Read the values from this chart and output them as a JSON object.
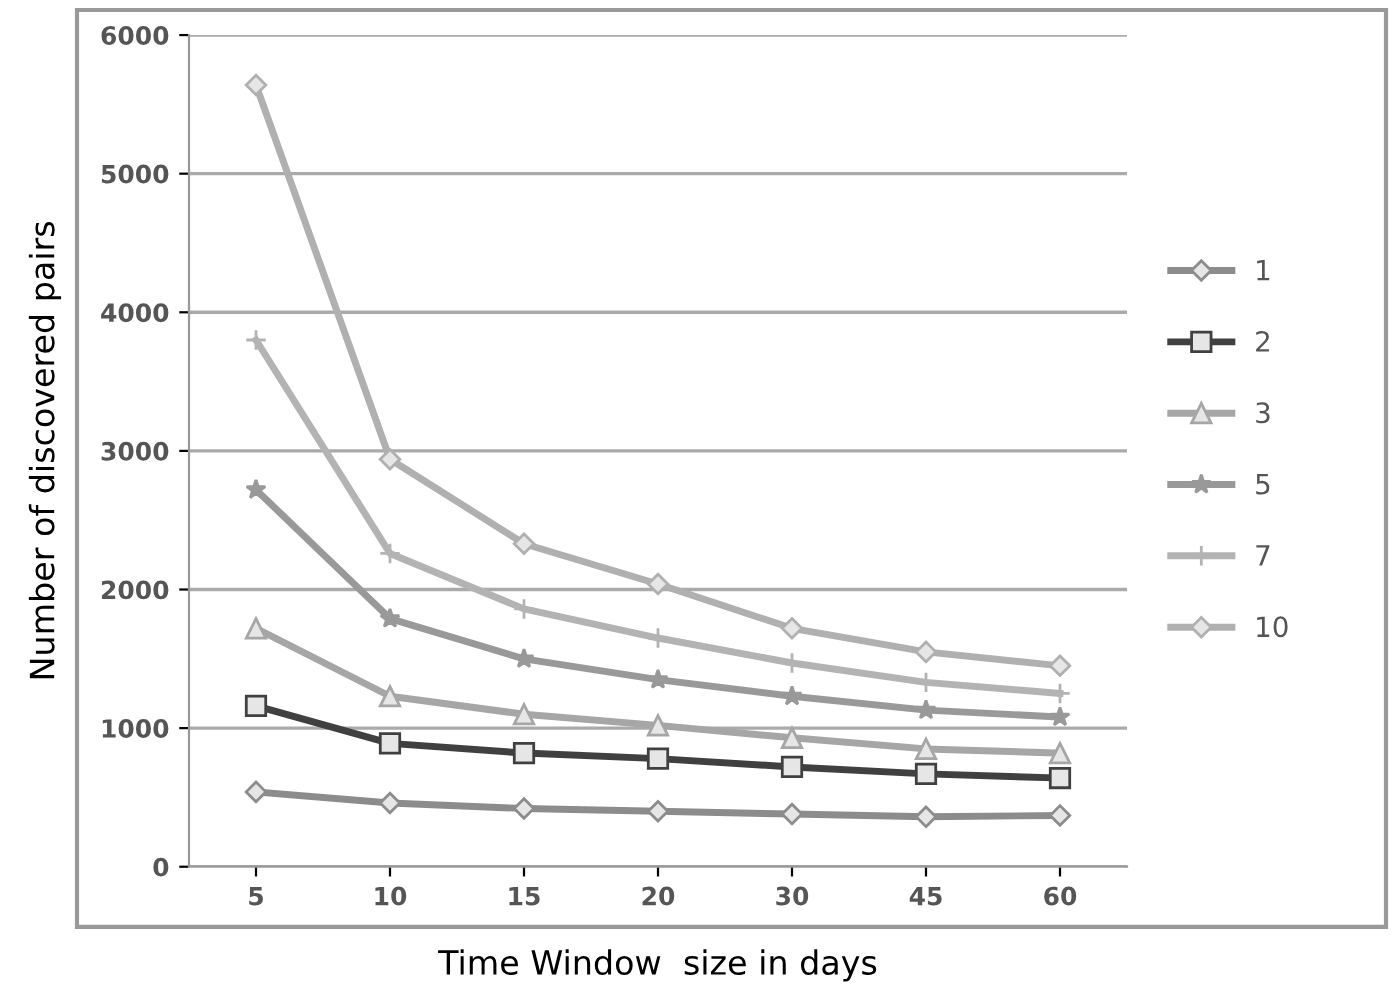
{
  "chart_data": {
    "type": "line",
    "xlabel": "Time Window  size in days",
    "ylabel": "Number of discovered pairs",
    "categories": [
      "5",
      "10",
      "15",
      "20",
      "30",
      "45",
      "60"
    ],
    "ylim": [
      0,
      6000
    ],
    "yticks": [
      0,
      1000,
      2000,
      3000,
      4000,
      5000,
      6000
    ],
    "grid": "y",
    "legend": "right",
    "series": [
      {
        "name": "1",
        "color": "#8c8c8c",
        "marker": "diamond",
        "values": [
          540,
          460,
          420,
          400,
          380,
          360,
          370
        ]
      },
      {
        "name": "2",
        "color": "#404040",
        "marker": "square",
        "values": [
          1160,
          890,
          820,
          780,
          720,
          670,
          640
        ]
      },
      {
        "name": "3",
        "color": "#a6a6a6",
        "marker": "triangle",
        "values": [
          1720,
          1230,
          1100,
          1020,
          930,
          850,
          820
        ]
      },
      {
        "name": "5",
        "color": "#999999",
        "marker": "star",
        "values": [
          2720,
          1790,
          1500,
          1350,
          1230,
          1130,
          1080
        ]
      },
      {
        "name": "7",
        "color": "#b3b3b3",
        "marker": "cross",
        "values": [
          3800,
          2260,
          1860,
          1650,
          1470,
          1330,
          1250
        ]
      },
      {
        "name": "10",
        "color": "#b0b0b0",
        "marker": "diamond",
        "values": [
          5640,
          2940,
          2330,
          2040,
          1720,
          1550,
          1450
        ]
      }
    ]
  }
}
